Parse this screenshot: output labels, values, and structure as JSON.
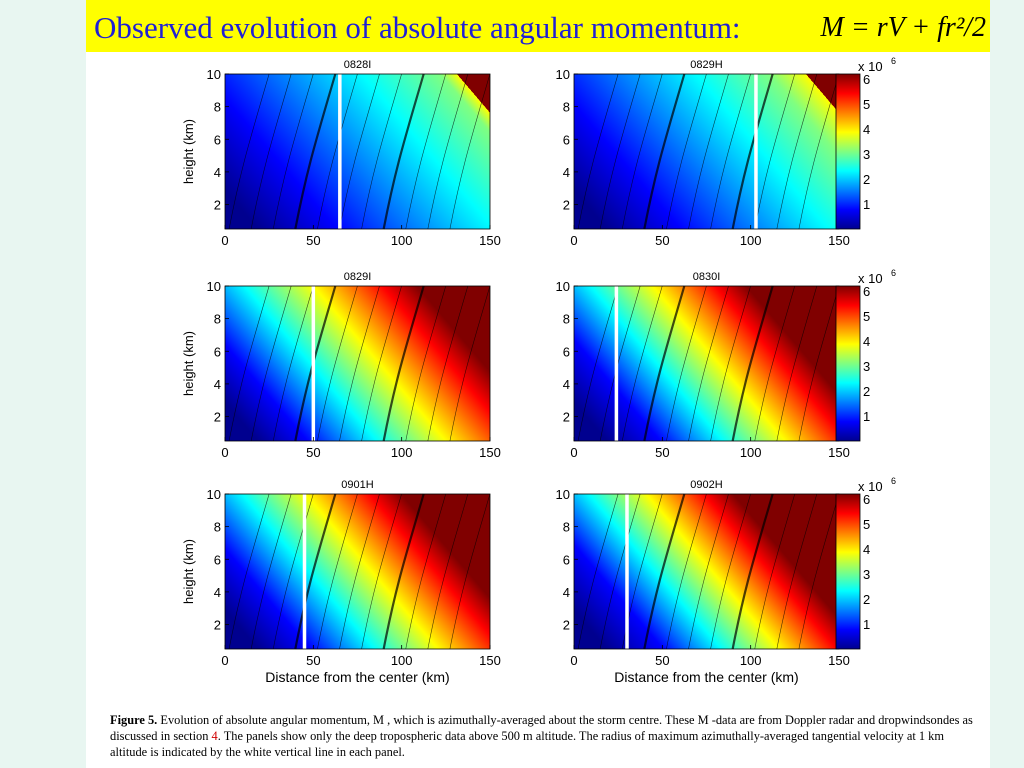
{
  "slide": {
    "title": "Observed evolution of absolute angular momentum:",
    "formula": "M = rV + fr²/2"
  },
  "figure": {
    "caption_label": "Figure 5.",
    "caption_part1": "Evolution of absolute angular momentum, M , which is azimuthally-averaged about the storm centre. These M -data are from Doppler radar and dropwindsondes as discussed in section ",
    "caption_ref": "4",
    "caption_part2": ". The panels show only the deep tropospheric data above 500 m altitude. The radius of maximum azimuthally-averaged tangential velocity at 1 km altitude is indicated by the white vertical line in each panel.",
    "ylabel": "height (km)",
    "xlabel": "Distance from the center (km)",
    "x_ticks": [
      "0",
      "50",
      "100",
      "150"
    ],
    "y_ticks": [
      "10",
      "8",
      "6",
      "4",
      "2"
    ],
    "colorbar_multiplier": "x 10",
    "colorbar_exponent": "6",
    "colorbar_ticks": [
      "6",
      "5",
      "4",
      "3",
      "2",
      "1"
    ],
    "panels": [
      {
        "title": "0828I",
        "rmw_km": 65,
        "level": 0.0
      },
      {
        "title": "0829H",
        "rmw_km": 103,
        "level": 0.12
      },
      {
        "title": "0829I",
        "rmw_km": 50,
        "level": 0.3
      },
      {
        "title": "0830I",
        "rmw_km": 24,
        "level": 0.45
      },
      {
        "title": "0901H",
        "rmw_km": 45,
        "level": 0.42
      },
      {
        "title": "0902H",
        "rmw_km": 30,
        "level": 0.55
      }
    ],
    "colors": {
      "colormap": [
        "#00008f",
        "#0000ff",
        "#0080ff",
        "#00ffff",
        "#80ff80",
        "#ffff00",
        "#ff8000",
        "#ff0000",
        "#800000"
      ]
    }
  }
}
